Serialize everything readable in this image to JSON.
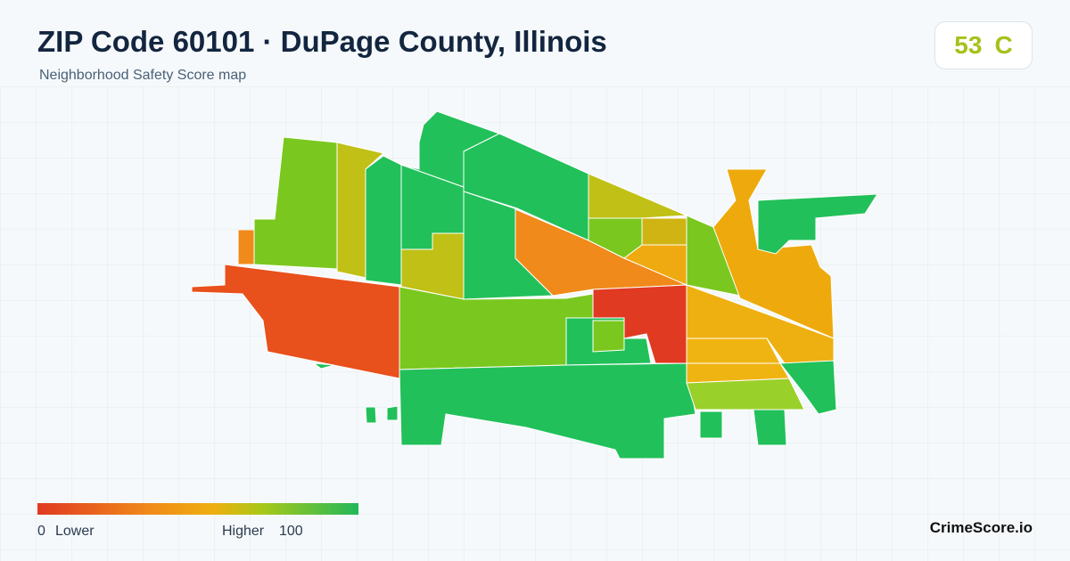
{
  "header": {
    "title": "ZIP Code 60101 · DuPage County, Illinois",
    "subtitle": "Neighborhood Safety Score map"
  },
  "score": {
    "value": 53,
    "grade": "C"
  },
  "legend": {
    "min": 0,
    "min_label": "Lower",
    "max_label": "Higher",
    "max": 100
  },
  "brand": "CrimeScore.io"
}
